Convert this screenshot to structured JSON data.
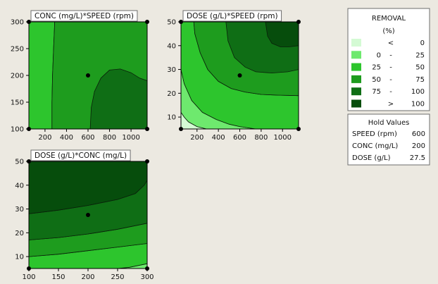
{
  "chart_data": [
    {
      "type": "contour",
      "title": "CONC (mg/L)*SPEED (rpm)",
      "x_ticks": [
        200,
        400,
        600,
        800,
        1000
      ],
      "y_ticks": [
        100,
        150,
        200,
        250,
        300
      ],
      "xlim": [
        50,
        1150
      ],
      "ylim": [
        100,
        300
      ],
      "hold_point": {
        "x": 600,
        "y": 200
      },
      "regions": [
        {
          "band": "25 - 50",
          "color": "#2dc52d",
          "boundary": [
            [
              50,
              100
            ],
            [
              50,
              300
            ],
            [
              290,
              300
            ],
            [
              280,
              250
            ],
            [
              270,
              200
            ],
            [
              265,
              150
            ],
            [
              265,
              100
            ]
          ]
        },
        {
          "band": "50 - 75",
          "color": "#1e9c1e",
          "boundary": [
            [
              265,
              100
            ],
            [
              265,
              150
            ],
            [
              270,
              200
            ],
            [
              280,
              250
            ],
            [
              290,
              300
            ],
            [
              1150,
              300
            ],
            [
              1150,
              100
            ]
          ]
        },
        {
          "band": "75 - 100",
          "color": "#0f6e15",
          "boundary": [
            [
              620,
              100
            ],
            [
              630,
              140
            ],
            [
              660,
              170
            ],
            [
              720,
              195
            ],
            [
              800,
              210
            ],
            [
              900,
              212
            ],
            [
              1000,
              205
            ],
            [
              1080,
              195
            ],
            [
              1150,
              190
            ],
            [
              1150,
              100
            ]
          ]
        }
      ]
    },
    {
      "type": "contour",
      "title": "DOSE (g/L)*SPEED (rpm)",
      "x_ticks": [
        200,
        400,
        600,
        800,
        1000
      ],
      "y_ticks": [
        10,
        20,
        30,
        40,
        50
      ],
      "xlim": [
        50,
        1150
      ],
      "ylim": [
        5,
        50
      ],
      "hold_point": {
        "x": 600,
        "y": 27.5
      },
      "regions": [
        {
          "band": "< 0",
          "color": "#d4fad4",
          "boundary": [
            [
              50,
              5
            ],
            [
              50,
              12
            ],
            [
              80,
              10
            ],
            [
              120,
              8
            ],
            [
              200,
              6
            ],
            [
              290,
              5
            ]
          ]
        },
        {
          "band": "0 - 25",
          "color": "#6ee96e",
          "boundary": [
            [
              50,
              12
            ],
            [
              50,
              30
            ],
            [
              80,
              24
            ],
            [
              150,
              17
            ],
            [
              250,
              12
            ],
            [
              380,
              9
            ],
            [
              500,
              7
            ],
            [
              600,
              6
            ],
            [
              750,
              5
            ],
            [
              290,
              5
            ],
            [
              200,
              6
            ],
            [
              120,
              8
            ],
            [
              80,
              10
            ]
          ]
        },
        {
          "band": "25 - 50",
          "color": "#2dc52d",
          "boundary": [
            [
              50,
              30
            ],
            [
              50,
              50
            ],
            [
              170,
              50
            ],
            [
              180,
              45
            ],
            [
              230,
              37
            ],
            [
              300,
              30
            ],
            [
              400,
              25
            ],
            [
              520,
              22
            ],
            [
              650,
              20.5
            ],
            [
              800,
              19.5
            ],
            [
              950,
              19.2
            ],
            [
              1150,
              19
            ],
            [
              1150,
              5
            ],
            [
              750,
              5
            ],
            [
              600,
              6
            ],
            [
              500,
              7
            ],
            [
              380,
              9
            ],
            [
              250,
              12
            ],
            [
              150,
              17
            ],
            [
              80,
              24
            ]
          ]
        },
        {
          "band": "50 - 75",
          "color": "#1e9c1e",
          "boundary": [
            [
              170,
              50
            ],
            [
              180,
              45
            ],
            [
              230,
              37
            ],
            [
              300,
              30
            ],
            [
              400,
              25
            ],
            [
              520,
              22
            ],
            [
              650,
              20.5
            ],
            [
              800,
              19.5
            ],
            [
              950,
              19.2
            ],
            [
              1150,
              19
            ],
            [
              1150,
              50
            ]
          ]
        },
        {
          "band": "75 - 100",
          "color": "#0f6e15",
          "boundary": [
            [
              470,
              50
            ],
            [
              490,
              42
            ],
            [
              550,
              35
            ],
            [
              650,
              31
            ],
            [
              750,
              29
            ],
            [
              900,
              28.5
            ],
            [
              1050,
              29
            ],
            [
              1150,
              30
            ],
            [
              1150,
              50
            ]
          ]
        },
        {
          "band": "> 100",
          "color": "#064d0c",
          "boundary": [
            [
              840,
              50
            ],
            [
              860,
              44
            ],
            [
              900,
              41
            ],
            [
              980,
              39.5
            ],
            [
              1060,
              39.5
            ],
            [
              1150,
              40
            ],
            [
              1150,
              50
            ]
          ]
        }
      ]
    },
    {
      "type": "contour",
      "title": "DOSE (g/L)*CONC (mg/L)",
      "x_ticks": [
        100,
        150,
        200,
        250,
        300
      ],
      "y_ticks": [
        10,
        20,
        30,
        40,
        50
      ],
      "xlim": [
        100,
        300
      ],
      "ylim": [
        5,
        50
      ],
      "hold_point": {
        "x": 200,
        "y": 27.5
      },
      "regions": [
        {
          "band": "0 - 25",
          "color": "#6ee96e",
          "boundary": [
            [
              250,
              5
            ],
            [
              270,
              5.5
            ],
            [
              300,
              7
            ],
            [
              300,
              5
            ]
          ]
        },
        {
          "band": "25 - 50",
          "color": "#2dc52d",
          "boundary": [
            [
              100,
              5
            ],
            [
              100,
              10
            ],
            [
              150,
              11
            ],
            [
              200,
              12.5
            ],
            [
              250,
              14
            ],
            [
              300,
              15.5
            ],
            [
              300,
              7
            ],
            [
              270,
              5.5
            ],
            [
              250,
              5
            ]
          ]
        },
        {
          "band": "50 - 75",
          "color": "#1e9c1e",
          "boundary": [
            [
              100,
              10
            ],
            [
              100,
              17
            ],
            [
              150,
              18
            ],
            [
              200,
              19.5
            ],
            [
              250,
              21.5
            ],
            [
              300,
              24
            ],
            [
              300,
              15.5
            ],
            [
              250,
              14
            ],
            [
              200,
              12.5
            ],
            [
              150,
              11
            ]
          ]
        },
        {
          "band": "75 - 100",
          "color": "#0f6e15",
          "boundary": [
            [
              100,
              17
            ],
            [
              100,
              28
            ],
            [
              150,
              29.5
            ],
            [
              200,
              31.5
            ],
            [
              250,
              34
            ],
            [
              280,
              36.5
            ],
            [
              295,
              40
            ],
            [
              300,
              42
            ],
            [
              300,
              24
            ],
            [
              250,
              21.5
            ],
            [
              200,
              19.5
            ],
            [
              150,
              18
            ]
          ]
        },
        {
          "band": "> 100",
          "color": "#064d0c",
          "boundary": [
            [
              100,
              28
            ],
            [
              100,
              50
            ],
            [
              300,
              50
            ],
            [
              300,
              42
            ],
            [
              295,
              40
            ],
            [
              280,
              36.5
            ],
            [
              250,
              34
            ],
            [
              200,
              31.5
            ],
            [
              150,
              29.5
            ]
          ]
        }
      ]
    }
  ],
  "legend": {
    "title_line1": "REMOVAL",
    "title_line2": "(%)",
    "items": [
      {
        "left": "",
        "dash": "<",
        "right": "0",
        "color": "#d4fad4"
      },
      {
        "left": "0",
        "dash": "-",
        "right": "25",
        "color": "#6ee96e"
      },
      {
        "left": "25",
        "dash": "-",
        "right": "50",
        "color": "#2dc52d"
      },
      {
        "left": "50",
        "dash": "-",
        "right": "75",
        "color": "#1e9c1e"
      },
      {
        "left": "75",
        "dash": "-",
        "right": "100",
        "color": "#0f6e15"
      },
      {
        "left": "",
        "dash": ">",
        "right": "100",
        "color": "#064d0c"
      }
    ]
  },
  "hold_values": {
    "title": "Hold Values",
    "rows": [
      {
        "name": "SPEED (rpm)",
        "value": "600"
      },
      {
        "name": "CONC (mg/L)",
        "value": "200"
      },
      {
        "name": "DOSE (g/L)",
        "value": "27.5"
      }
    ]
  }
}
